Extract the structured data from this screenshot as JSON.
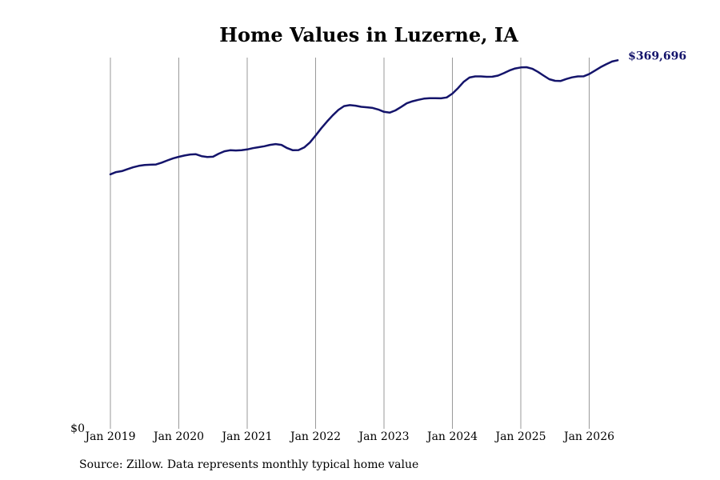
{
  "chart_data": {
    "type": "line",
    "title": "Home Values in Luzerne, IA",
    "xlabel": "",
    "ylabel": "",
    "y_tick_label": "$0",
    "ylim": [
      0,
      390000
    ],
    "xlim": [
      "2019-01",
      "2026-09"
    ],
    "x_ticks": [
      {
        "date": "2019-01",
        "label": "Jan 2019"
      },
      {
        "date": "2020-01",
        "label": "Jan 2020"
      },
      {
        "date": "2021-01",
        "label": "Jan 2021"
      },
      {
        "date": "2022-01",
        "label": "Jan 2022"
      },
      {
        "date": "2023-01",
        "label": "Jan 2023"
      },
      {
        "date": "2024-01",
        "label": "Jan 2024"
      },
      {
        "date": "2025-01",
        "label": "Jan 2025"
      },
      {
        "date": "2026-01",
        "label": "Jan 2026"
      }
    ],
    "grid": "vertical",
    "line_color": "#14146b",
    "end_label": "$369,696",
    "series": [
      {
        "x": [
          "2019-01",
          "2019-02",
          "2019-03",
          "2019-04",
          "2019-05",
          "2019-06",
          "2019-07",
          "2019-08",
          "2019-09",
          "2019-10",
          "2019-11",
          "2019-12",
          "2020-01",
          "2020-02",
          "2020-03",
          "2020-04",
          "2020-05",
          "2020-06",
          "2020-07",
          "2020-08",
          "2020-09",
          "2020-10",
          "2020-11",
          "2020-12",
          "2021-01",
          "2021-02",
          "2021-03",
          "2021-04",
          "2021-05",
          "2021-06",
          "2021-07",
          "2021-08",
          "2021-09",
          "2021-10",
          "2021-11",
          "2021-12",
          "2022-01",
          "2022-02",
          "2022-03",
          "2022-04",
          "2022-05",
          "2022-06",
          "2022-07",
          "2022-08",
          "2022-09",
          "2022-10",
          "2022-11",
          "2022-12",
          "2023-01",
          "2023-02",
          "2023-03",
          "2023-04",
          "2023-05",
          "2023-06",
          "2023-07",
          "2023-08",
          "2023-09",
          "2023-10",
          "2023-11",
          "2023-12",
          "2024-01",
          "2024-02",
          "2024-03",
          "2024-04",
          "2024-05",
          "2024-06",
          "2024-07",
          "2024-08",
          "2024-09",
          "2024-10",
          "2024-11",
          "2024-12",
          "2025-01",
          "2025-02",
          "2025-03",
          "2025-04",
          "2025-05",
          "2025-06",
          "2025-07",
          "2025-08",
          "2025-09",
          "2025-10",
          "2025-11",
          "2025-12",
          "2026-01",
          "2026-02",
          "2026-03",
          "2026-04",
          "2026-05",
          "2026-06"
        ],
        "values": [
          255300,
          257500,
          258500,
          260500,
          262300,
          263800,
          264600,
          264900,
          265100,
          267000,
          269200,
          271300,
          272800,
          274100,
          275200,
          275400,
          273500,
          272700,
          272900,
          276000,
          278400,
          279400,
          279200,
          279400,
          280200,
          281500,
          282500,
          283400,
          284800,
          285600,
          284800,
          281600,
          279400,
          279600,
          282200,
          287200,
          294200,
          301500,
          308200,
          314400,
          319900,
          323700,
          324700,
          324100,
          323000,
          322500,
          321900,
          320300,
          317900,
          317100,
          319400,
          322800,
          326500,
          328500,
          330000,
          331200,
          331600,
          331600,
          331500,
          332400,
          336200,
          341800,
          348200,
          352400,
          353500,
          353500,
          353100,
          353200,
          354300,
          356700,
          359400,
          361400,
          362500,
          362700,
          361200,
          358100,
          354300,
          350700,
          349100,
          348900,
          350900,
          352500,
          353500,
          353600,
          355800,
          359300,
          362800,
          365700,
          368400,
          369696
        ]
      }
    ]
  },
  "source_note": "Source: Zillow. Data represents monthly typical home value"
}
